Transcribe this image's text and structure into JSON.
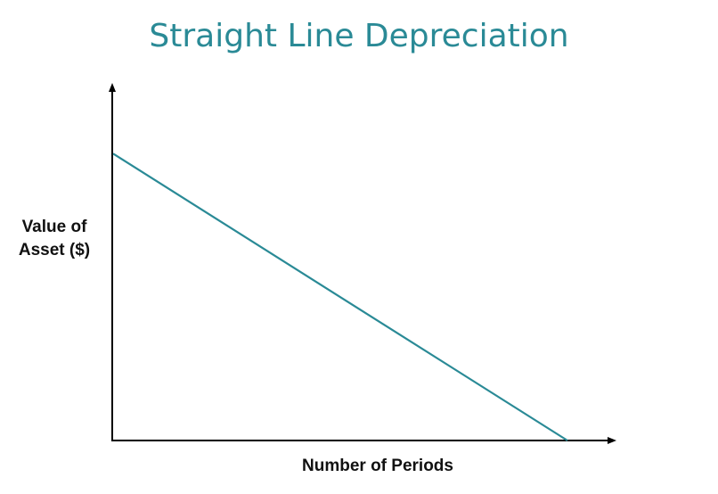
{
  "chart_data": {
    "type": "line",
    "title": "Straight Line Depreciation",
    "xlabel": "Number of Periods",
    "ylabel_lines": [
      "Value of",
      "Asset ($)"
    ],
    "series": [
      {
        "x": [
          0,
          1
        ],
        "y": [
          1,
          0
        ]
      }
    ],
    "xlim": [
      0,
      1.1
    ],
    "ylim": [
      0,
      1.2
    ],
    "grid": false,
    "ticks": false,
    "line_color": "#2a8a96",
    "axis_color": "#000000"
  }
}
